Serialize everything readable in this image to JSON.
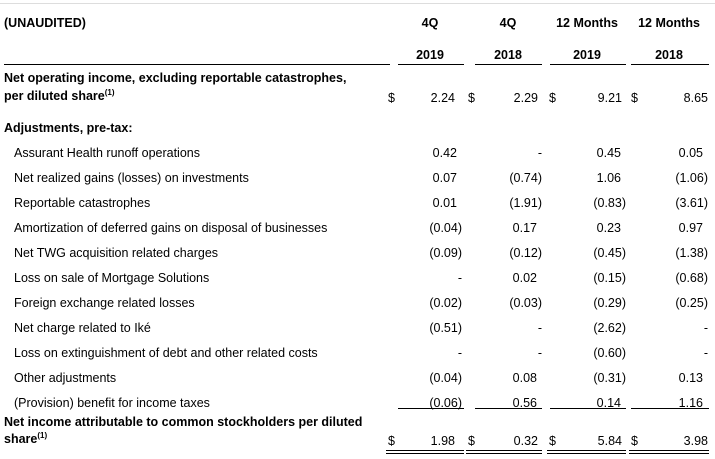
{
  "header": {
    "label": "(UNAUDITED)",
    "columns": [
      {
        "top": "4Q",
        "bottom": "2019"
      },
      {
        "top": "4Q",
        "bottom": "2018"
      },
      {
        "top": "12 Months",
        "bottom": "2019"
      },
      {
        "top": "12 Months",
        "bottom": "2018"
      }
    ]
  },
  "currency": "$",
  "noi": {
    "line1": "Net operating income, excluding reportable catastrophes,",
    "line2": "per diluted share",
    "footnote": "(1)",
    "values": [
      "2.24",
      "2.29",
      "9.21",
      "8.65"
    ]
  },
  "adjustments_heading": "Adjustments, pre-tax:",
  "rows": [
    {
      "label": "Assurant Health runoff operations",
      "values": [
        "0.42",
        "-",
        "0.45",
        "0.05"
      ]
    },
    {
      "label": "Net realized gains (losses) on investments",
      "values": [
        "0.07",
        "(0.74)",
        "1.06",
        "(1.06)"
      ]
    },
    {
      "label": "Reportable catastrophes",
      "values": [
        "0.01",
        "(1.91)",
        "(0.83)",
        "(3.61)"
      ]
    },
    {
      "label": "Amortization of deferred gains on disposal of businesses",
      "values": [
        "(0.04)",
        "0.17",
        "0.23",
        "0.97"
      ]
    },
    {
      "label": "Net TWG acquisition related charges",
      "values": [
        "(0.09)",
        "(0.12)",
        "(0.45)",
        "(1.38)"
      ]
    },
    {
      "label": "Loss on sale of Mortgage Solutions",
      "values": [
        "-",
        "0.02",
        "(0.15)",
        "(0.68)"
      ]
    },
    {
      "label": "Foreign exchange related losses",
      "values": [
        "(0.02)",
        "(0.03)",
        "(0.29)",
        "(0.25)"
      ]
    },
    {
      "label": "Net charge related to Iké",
      "values": [
        "(0.51)",
        "-",
        "(2.62)",
        "-"
      ]
    },
    {
      "label": "Loss on extinguishment of debt and other related costs",
      "values": [
        "-",
        "-",
        "(0.60)",
        "-"
      ]
    },
    {
      "label": "Other adjustments",
      "values": [
        "(0.04)",
        "0.08",
        "(0.31)",
        "0.13"
      ]
    },
    {
      "label": "(Provision) benefit for income taxes",
      "values": [
        "(0.06)",
        "0.56",
        "0.14",
        "1.16"
      ]
    }
  ],
  "net_income": {
    "line1": "Net income attributable to common stockholders per diluted",
    "line2": "share",
    "footnote": "(1)",
    "values": [
      "1.98",
      "0.32",
      "5.84",
      "3.98"
    ]
  }
}
